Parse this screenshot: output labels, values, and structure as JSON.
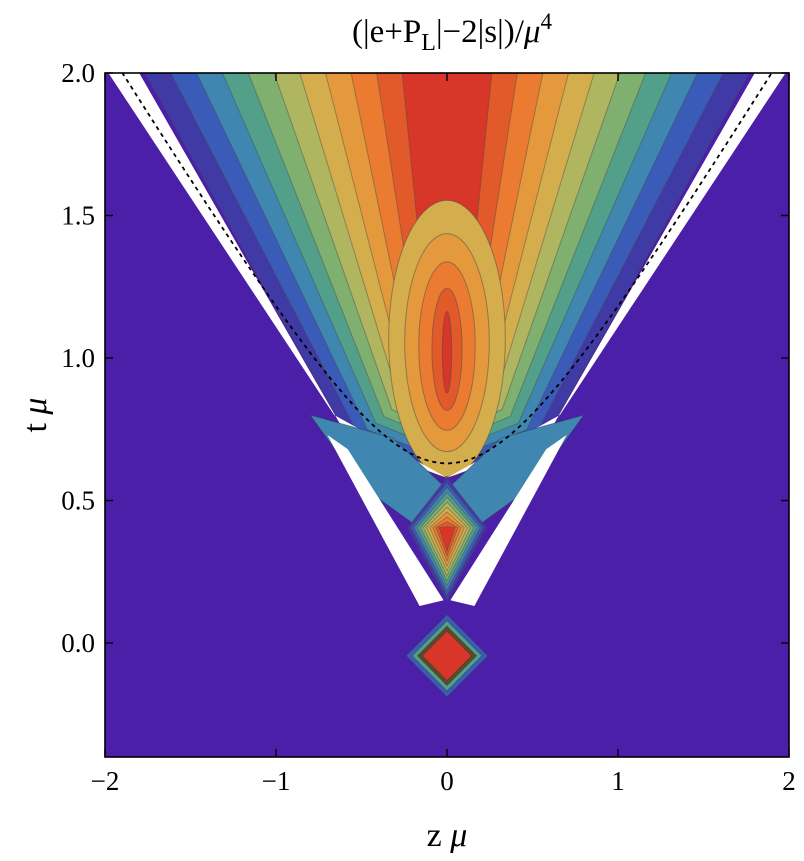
{
  "chart_data": {
    "type": "heatmap",
    "title_parts": [
      "(|e+P",
      "L",
      "|−2|s|)/",
      "μ",
      "4"
    ],
    "xlabel_parts": [
      "z ",
      "μ"
    ],
    "ylabel_parts": [
      "t ",
      "μ"
    ],
    "xlim": [
      -2,
      2
    ],
    "ylim": [
      -0.4,
      2.0
    ],
    "x_ticks": [
      -2,
      -1,
      0,
      1,
      2
    ],
    "x_tick_labels": [
      "−2",
      "−1",
      "0",
      "1",
      "2"
    ],
    "y_ticks": [
      0.0,
      0.5,
      1.0,
      1.5,
      2.0
    ],
    "y_tick_labels": [
      "0.0",
      "0.5",
      "1.0",
      "1.5",
      "2.0"
    ],
    "background_color": "#4b1fa8",
    "contour_palette": [
      "#3f3aa6",
      "#3b5bb8",
      "#3f86b0",
      "#53a08a",
      "#7fb070",
      "#b0b560",
      "#d4ad4c",
      "#e49a3c",
      "#ea7b30",
      "#e35a2a",
      "#d9362a"
    ],
    "excluded_region_color": "#ffffff",
    "regions": {
      "upper_cone": {
        "apex_t": 0.58,
        "max_t": 2.0,
        "peak": [
          0.0,
          1.0
        ]
      },
      "middle_diamond": {
        "t_range": [
          0.15,
          0.58
        ],
        "peak": [
          0.0,
          0.36
        ]
      },
      "lower_diamond": {
        "t_range": [
          -0.19,
          0.1
        ],
        "peak": [
          0.0,
          -0.05
        ]
      }
    },
    "dashed_curve": {
      "vertex_t": 0.63,
      "asymptote_slope": 1
    }
  }
}
